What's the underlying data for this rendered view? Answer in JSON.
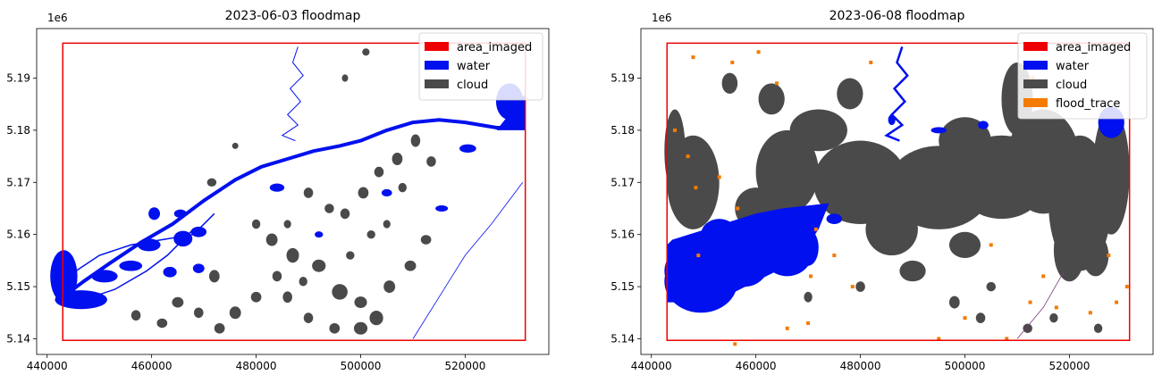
{
  "chart_data": [
    {
      "type": "map",
      "title": "2023-06-03 floodmap",
      "xlabel": "",
      "ylabel": "",
      "y_offset_label": "1e6",
      "xlim": [
        438000,
        536000
      ],
      "ylim": [
        5.137,
        5.1995
      ],
      "x_ticks": [
        440000,
        460000,
        480000,
        500000,
        520000
      ],
      "x_tick_labels": [
        "440000",
        "460000",
        "480000",
        "500000",
        "520000"
      ],
      "y_ticks": [
        5.14,
        5.15,
        5.16,
        5.17,
        5.18,
        5.19
      ],
      "y_tick_labels": [
        "5.14",
        "5.15",
        "5.16",
        "5.17",
        "5.18",
        "5.19"
      ],
      "legend": {
        "position": "top-right",
        "entries": [
          {
            "label": "area_imaged",
            "color": "#ee0000"
          },
          {
            "label": "water",
            "color": "#0010ee"
          },
          {
            "label": "cloud",
            "color": "#4a4a4a"
          }
        ]
      },
      "area_imaged_bounds": {
        "x": [
          443000,
          531500
        ],
        "y": [
          5.1397,
          5.1967
        ]
      },
      "grid": false
    },
    {
      "type": "map",
      "title": "2023-06-08 floodmap",
      "xlabel": "",
      "ylabel": "",
      "y_offset_label": "1e6",
      "xlim": [
        438000,
        536000
      ],
      "ylim": [
        5.137,
        5.1995
      ],
      "x_ticks": [
        440000,
        460000,
        480000,
        500000,
        520000
      ],
      "x_tick_labels": [
        "440000",
        "460000",
        "480000",
        "500000",
        "520000"
      ],
      "y_ticks": [
        5.14,
        5.15,
        5.16,
        5.17,
        5.18,
        5.19
      ],
      "y_tick_labels": [
        "5.14",
        "5.15",
        "5.16",
        "5.17",
        "5.18",
        "5.19"
      ],
      "legend": {
        "position": "top-right",
        "entries": [
          {
            "label": "area_imaged",
            "color": "#ee0000"
          },
          {
            "label": "water",
            "color": "#0010ee"
          },
          {
            "label": "cloud",
            "color": "#4a4a4a"
          },
          {
            "label": "flood_trace",
            "color": "#f57a00"
          }
        ]
      },
      "area_imaged_bounds": {
        "x": [
          443000,
          531500
        ],
        "y": [
          5.1397,
          5.1967
        ]
      },
      "grid": false
    }
  ]
}
